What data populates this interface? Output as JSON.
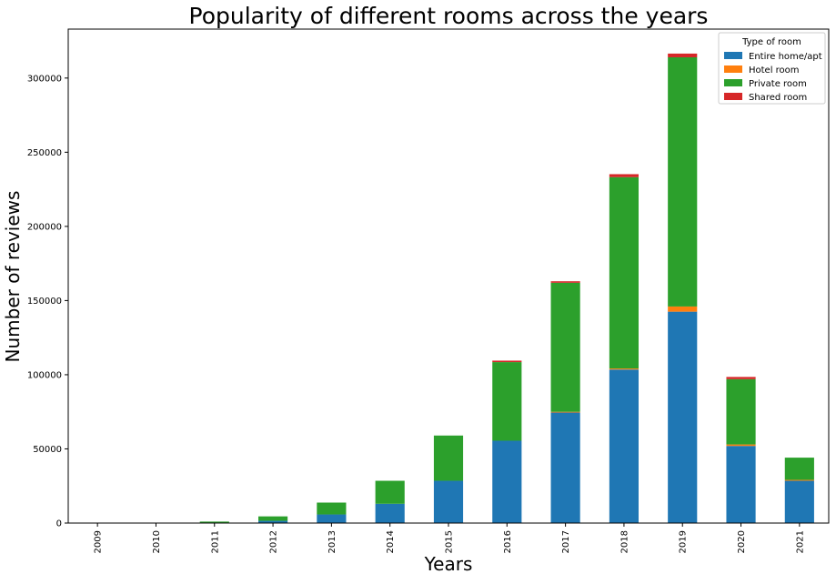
{
  "chart_data": {
    "type": "bar",
    "stacked": true,
    "title": "Popularity of different rooms across the years",
    "xlabel": "Years",
    "ylabel": "Number of reviews",
    "ylim": [
      0,
      333000
    ],
    "yticks": [
      0,
      50000,
      100000,
      150000,
      200000,
      250000,
      300000
    ],
    "categories": [
      "2009",
      "2010",
      "2011",
      "2012",
      "2013",
      "2014",
      "2015",
      "2016",
      "2017",
      "2018",
      "2019",
      "2020",
      "2021"
    ],
    "legend": {
      "title": "Type of room",
      "placement": "top-right"
    },
    "series": [
      {
        "name": "Entire home/apt",
        "color": "#1f77b4",
        "values": [
          10,
          80,
          300,
          1500,
          5800,
          13000,
          28500,
          55500,
          74500,
          103500,
          142500,
          52000,
          28500
        ]
      },
      {
        "name": "Hotel room",
        "color": "#ff7f0e",
        "values": [
          0,
          0,
          0,
          0,
          0,
          0,
          0,
          0,
          500,
          700,
          3500,
          1000,
          600
        ]
      },
      {
        "name": "Private room",
        "color": "#2ca02c",
        "values": [
          20,
          150,
          700,
          3000,
          8000,
          15500,
          30500,
          53000,
          87000,
          129000,
          168000,
          44000,
          15000
        ]
      },
      {
        "name": "Shared room",
        "color": "#d62728",
        "values": [
          0,
          0,
          0,
          0,
          0,
          0,
          0,
          1000,
          1000,
          2000,
          2500,
          1500,
          0
        ]
      }
    ]
  }
}
